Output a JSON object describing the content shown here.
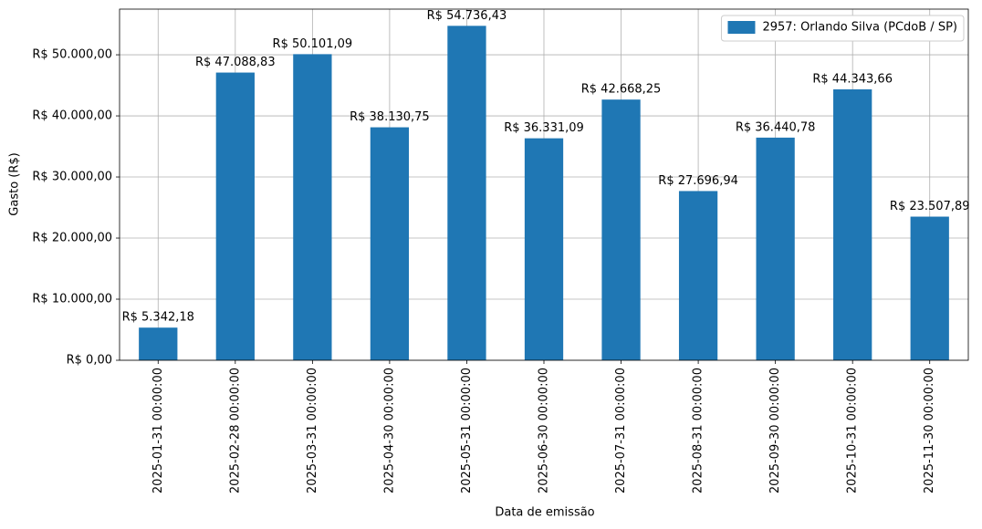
{
  "chart_data": {
    "type": "bar",
    "categories": [
      "2025-01-31 00:00:00",
      "2025-02-28 00:00:00",
      "2025-03-31 00:00:00",
      "2025-04-30 00:00:00",
      "2025-05-31 00:00:00",
      "2025-06-30 00:00:00",
      "2025-07-31 00:00:00",
      "2025-08-31 00:00:00",
      "2025-09-30 00:00:00",
      "2025-10-31 00:00:00",
      "2025-11-30 00:00:00"
    ],
    "series": [
      {
        "name": "2957: Orlando Silva (PCdoB / SP)",
        "color": "#1f77b4",
        "values": [
          5342.18,
          47088.83,
          50101.09,
          38130.75,
          54736.43,
          36331.09,
          42668.25,
          27696.94,
          36440.78,
          44343.66,
          23507.89
        ],
        "value_labels": [
          "R$ 5.342,18",
          "R$ 47.088,83",
          "R$ 50.101,09",
          "R$ 38.130,75",
          "R$ 54.736,43",
          "R$ 36.331,09",
          "R$ 42.668,25",
          "R$ 27.696,94",
          "R$ 36.440,78",
          "R$ 44.343,66",
          "R$ 23.507,89"
        ]
      }
    ],
    "xlabel": "Data de emissão",
    "ylabel": "Gasto (R$)",
    "ylim": [
      0,
      57473.25
    ],
    "yticks": [
      {
        "value": 0,
        "label": "R$ 0,00"
      },
      {
        "value": 10000,
        "label": "R$ 10.000,00"
      },
      {
        "value": 20000,
        "label": "R$ 20.000,00"
      },
      {
        "value": 30000,
        "label": "R$ 30.000,00"
      },
      {
        "value": 40000,
        "label": "R$ 40.000,00"
      },
      {
        "value": 50000,
        "label": "R$ 50.000,00"
      }
    ],
    "grid": true,
    "legend": "upper right"
  }
}
